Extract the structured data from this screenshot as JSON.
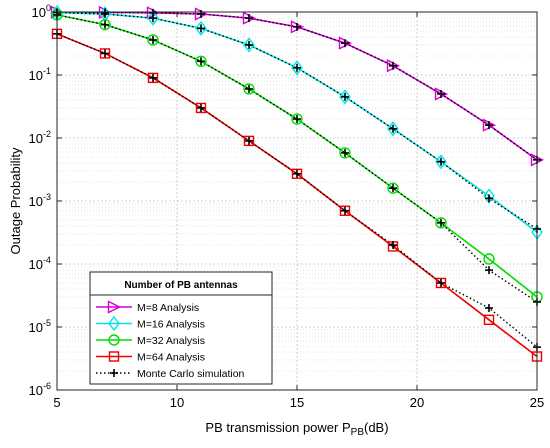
{
  "chart_data": {
    "type": "line",
    "xlabel": "PB transmission power P",
    "xlabel_sub": "PB",
    "xlabel_suffix": "(dB)",
    "ylabel": "Outage Probability",
    "xlim": [
      5,
      25
    ],
    "ylim_log10": [
      -6,
      0
    ],
    "yscale": "log",
    "grid": true,
    "x_ticks": [
      "5",
      "10",
      "15",
      "20",
      "25"
    ],
    "y_ticks": [
      {
        "base": "10",
        "exp": "-6"
      },
      {
        "base": "10",
        "exp": "-5"
      },
      {
        "base": "10",
        "exp": "-4"
      },
      {
        "base": "10",
        "exp": "-3"
      },
      {
        "base": "10",
        "exp": "-2"
      },
      {
        "base": "10",
        "exp": "-1"
      },
      {
        "base": "10",
        "exp": "0"
      }
    ],
    "legend": {
      "placement": "lower-left",
      "title": "Number of PB antennas",
      "entries": [
        "M=8  Analysis",
        "M=16 Analysis",
        "M=32 Analysis",
        "M=64 Analysis",
        "Monte Carlo simulation"
      ]
    },
    "x": [
      5,
      7,
      9,
      11,
      13,
      15,
      17,
      19,
      21,
      23,
      25
    ],
    "series": [
      {
        "name": "M=8  Analysis",
        "color": "#d400d4",
        "marker": "triangle-right",
        "values": [
          0.99,
          0.985,
          0.97,
          0.93,
          0.8,
          0.58,
          0.32,
          0.14,
          0.05,
          0.016,
          0.0045
        ]
      },
      {
        "name": "M=16 Analysis",
        "color": "#00e5e5",
        "marker": "diamond",
        "values": [
          0.98,
          0.93,
          0.8,
          0.55,
          0.3,
          0.13,
          0.045,
          0.014,
          0.0042,
          0.0012,
          0.00032
        ]
      },
      {
        "name": "M=32 Analysis",
        "color": "#00dd00",
        "marker": "circle",
        "values": [
          0.9,
          0.63,
          0.36,
          0.165,
          0.06,
          0.02,
          0.0058,
          0.0016,
          0.00045,
          0.00012,
          3e-05
        ]
      },
      {
        "name": "M=64 Analysis",
        "color": "#ee0000",
        "marker": "square",
        "values": [
          0.45,
          0.22,
          0.09,
          0.03,
          0.009,
          0.0027,
          0.0007,
          0.00019,
          5e-05,
          1.3e-05,
          3.4e-06
        ]
      }
    ],
    "monte_carlo": {
      "name": "Monte Carlo simulation",
      "color": "#000000",
      "marker": "plus",
      "series": [
        [
          0.99,
          0.985,
          0.97,
          0.93,
          0.8,
          0.58,
          0.32,
          0.14,
          0.05,
          0.016,
          0.0045
        ],
        [
          0.98,
          0.93,
          0.8,
          0.55,
          0.3,
          0.13,
          0.045,
          0.014,
          0.0042,
          0.0011,
          0.00036
        ],
        [
          0.9,
          0.63,
          0.36,
          0.165,
          0.06,
          0.02,
          0.0058,
          0.0016,
          0.00045,
          8e-05,
          2.5e-05
        ],
        [
          0.45,
          0.22,
          0.09,
          0.03,
          0.009,
          0.0027,
          0.0007,
          0.0002,
          5e-05,
          2e-05,
          4.8e-06
        ]
      ]
    }
  }
}
